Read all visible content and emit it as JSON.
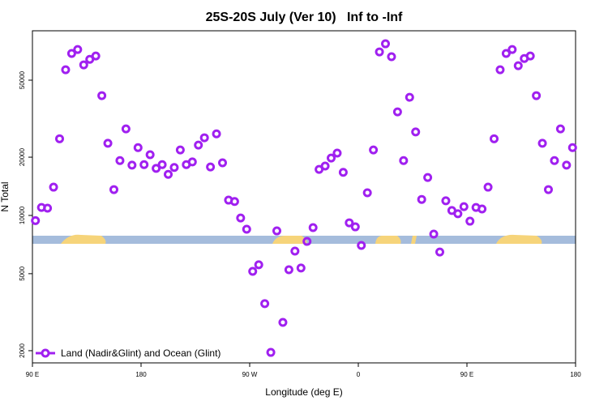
{
  "chart_data": {
    "type": "scatter",
    "title": "25S-20S July (Ver 10)   Inf to -Inf",
    "xlabel": "Longitude (deg E)",
    "ylabel": "N Total",
    "xlim": [
      90,
      540
    ],
    "xticks": [
      {
        "value": 90,
        "label": "90 E"
      },
      {
        "value": 180,
        "label": "180"
      },
      {
        "value": 270,
        "label": "90 W"
      },
      {
        "value": 360,
        "label": "0"
      },
      {
        "value": 450,
        "label": "90 E"
      },
      {
        "value": 540,
        "label": "180"
      }
    ],
    "ylim": [
      1730,
      90000
    ],
    "ylog": true,
    "yticks": [
      2000,
      5000,
      10000,
      20000,
      50000
    ],
    "legend": "bottom-left",
    "series": [
      {
        "name": "Land (Nadir&Glint) and Ocean (Glint)",
        "color": "#a020f0",
        "x": [
          92.5,
          97.5,
          102.5,
          107.5,
          112.5,
          117.5,
          122.5,
          127.5,
          132.5,
          137.5,
          142.5,
          147.5,
          152.5,
          157.5,
          162.5,
          167.5,
          172.5,
          177.5,
          182.5,
          187.5,
          192.5,
          197.5,
          202.5,
          207.5,
          212.5,
          217.5,
          222.5,
          227.5,
          232.5,
          237.5,
          242.5,
          247.5,
          252.5,
          257.5,
          262.5,
          267.5,
          272.5,
          277.5,
          282.5,
          287.5,
          292.5,
          297.5,
          302.5,
          307.5,
          312.5,
          317.5,
          322.5,
          327.5,
          332.5,
          337.5,
          342.5,
          347.5,
          352.5,
          357.5,
          362.5,
          367.5,
          372.5,
          377.5,
          382.5,
          387.5,
          392.5,
          397.5,
          402.5,
          407.5,
          412.5,
          417.5,
          422.5,
          427.5,
          432.5,
          437.5,
          442.5,
          447.5,
          452.5,
          457.5,
          462.5,
          467.5,
          472.5,
          477.5,
          482.5,
          487.5,
          492.5,
          497.5,
          502.5,
          507.5,
          512.5,
          517.5,
          522.5,
          527.5,
          532.5,
          537.5
        ],
        "values": [
          9400,
          11000,
          10900,
          14000,
          24900,
          56600,
          68700,
          72000,
          60000,
          64100,
          66700,
          41600,
          23600,
          13600,
          19200,
          28000,
          18200,
          22400,
          18300,
          20600,
          17500,
          18300,
          16300,
          17700,
          21800,
          18300,
          18900,
          23100,
          25200,
          17800,
          26400,
          18700,
          12000,
          11800,
          9700,
          8490,
          5140,
          5560,
          3500,
          1960,
          8320,
          2800,
          5240,
          6540,
          5350,
          7340,
          8650,
          17300,
          18000,
          19800,
          21000,
          16700,
          9160,
          8730,
          7000,
          13100,
          21800,
          70000,
          77100,
          66100,
          34300,
          19200,
          40800,
          27000,
          12100,
          15700,
          8010,
          6470,
          11900,
          10600,
          10200,
          11100,
          9340,
          11000,
          10800,
          14000,
          24900,
          56600,
          68700,
          72000,
          59400,
          64700,
          66700,
          41600,
          23600,
          13600,
          19200,
          28000,
          18200,
          22400
        ]
      }
    ]
  }
}
